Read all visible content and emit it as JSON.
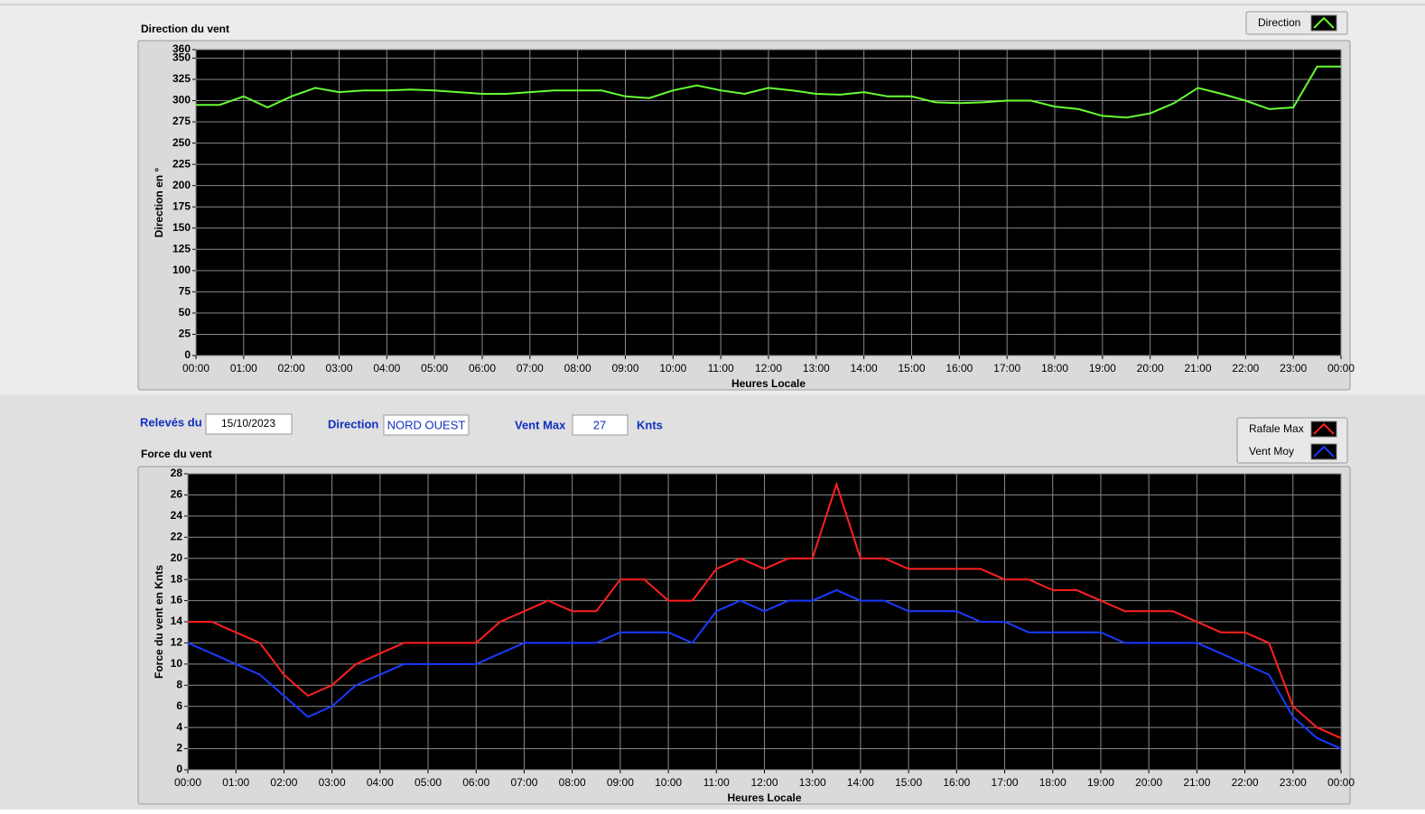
{
  "chart_data": [
    {
      "type": "line",
      "title": "Direction du vent",
      "x_label": "Heures Locale",
      "y_label": "Direction en °",
      "x": [
        0,
        0.5,
        1,
        1.5,
        2,
        2.5,
        3,
        3.5,
        4,
        4.5,
        5,
        5.5,
        6,
        6.5,
        7,
        7.5,
        8,
        8.5,
        9,
        9.5,
        10,
        10.5,
        11,
        11.5,
        12,
        12.5,
        13,
        13.5,
        14,
        14.5,
        15,
        15.5,
        16,
        16.5,
        17,
        17.5,
        18,
        18.5,
        19,
        19.5,
        20,
        20.5,
        21,
        21.5,
        22,
        22.5,
        23,
        23.5,
        24
      ],
      "xlim": [
        0,
        24
      ],
      "xticks": [
        {
          "value": 0,
          "label": "00:00"
        },
        {
          "value": 1,
          "label": "01:00"
        },
        {
          "value": 2,
          "label": "02:00"
        },
        {
          "value": 3,
          "label": "03:00"
        },
        {
          "value": 4,
          "label": "04:00"
        },
        {
          "value": 5,
          "label": "05:00"
        },
        {
          "value": 6,
          "label": "06:00"
        },
        {
          "value": 7,
          "label": "07:00"
        },
        {
          "value": 8,
          "label": "08:00"
        },
        {
          "value": 9,
          "label": "09:00"
        },
        {
          "value": 10,
          "label": "10:00"
        },
        {
          "value": 11,
          "label": "11:00"
        },
        {
          "value": 12,
          "label": "12:00"
        },
        {
          "value": 13,
          "label": "13:00"
        },
        {
          "value": 14,
          "label": "14:00"
        },
        {
          "value": 15,
          "label": "15:00"
        },
        {
          "value": 16,
          "label": "16:00"
        },
        {
          "value": 17,
          "label": "17:00"
        },
        {
          "value": 18,
          "label": "18:00"
        },
        {
          "value": 19,
          "label": "19:00"
        },
        {
          "value": 20,
          "label": "20:00"
        },
        {
          "value": 21,
          "label": "21:00"
        },
        {
          "value": 22,
          "label": "22:00"
        },
        {
          "value": 23,
          "label": "23:00"
        },
        {
          "value": 24,
          "label": "00:00"
        }
      ],
      "ylim": [
        0,
        360
      ],
      "yticks": [
        0,
        25,
        50,
        75,
        100,
        125,
        150,
        175,
        200,
        225,
        250,
        275,
        300,
        325,
        350,
        360
      ],
      "grid": true,
      "legend": "top-right",
      "series": [
        {
          "name": "Direction",
          "color": "#66ff33",
          "values": [
            295,
            295,
            305,
            292,
            305,
            315,
            310,
            312,
            312,
            313,
            312,
            310,
            308,
            308,
            310,
            312,
            312,
            312,
            305,
            303,
            312,
            318,
            312,
            308,
            315,
            312,
            308,
            307,
            310,
            305,
            305,
            298,
            297,
            298,
            300,
            300,
            293,
            290,
            282,
            280,
            285,
            297,
            315,
            308,
            300,
            290,
            292,
            340,
            340
          ]
        }
      ]
    },
    {
      "type": "line",
      "title": "Force du vent",
      "x_label": "Heures Locale",
      "y_label": "Force du vent en Knts",
      "x": [
        0,
        0.5,
        1,
        1.5,
        2,
        2.5,
        3,
        3.5,
        4,
        4.5,
        5,
        5.5,
        6,
        6.5,
        7,
        7.5,
        8,
        8.5,
        9,
        9.5,
        10,
        10.5,
        11,
        11.5,
        12,
        12.5,
        13,
        13.5,
        14,
        14.5,
        15,
        15.5,
        16,
        16.5,
        17,
        17.5,
        18,
        18.5,
        19,
        19.5,
        20,
        20.5,
        21,
        21.5,
        22,
        22.5,
        23,
        23.5,
        24
      ],
      "xlim": [
        0,
        24
      ],
      "xticks": [
        {
          "value": 0,
          "label": "00:00"
        },
        {
          "value": 1,
          "label": "01:00"
        },
        {
          "value": 2,
          "label": "02:00"
        },
        {
          "value": 3,
          "label": "03:00"
        },
        {
          "value": 4,
          "label": "04:00"
        },
        {
          "value": 5,
          "label": "05:00"
        },
        {
          "value": 6,
          "label": "06:00"
        },
        {
          "value": 7,
          "label": "07:00"
        },
        {
          "value": 8,
          "label": "08:00"
        },
        {
          "value": 9,
          "label": "09:00"
        },
        {
          "value": 10,
          "label": "10:00"
        },
        {
          "value": 11,
          "label": "11:00"
        },
        {
          "value": 12,
          "label": "12:00"
        },
        {
          "value": 13,
          "label": "13:00"
        },
        {
          "value": 14,
          "label": "14:00"
        },
        {
          "value": 15,
          "label": "15:00"
        },
        {
          "value": 16,
          "label": "16:00"
        },
        {
          "value": 17,
          "label": "17:00"
        },
        {
          "value": 18,
          "label": "18:00"
        },
        {
          "value": 19,
          "label": "19:00"
        },
        {
          "value": 20,
          "label": "20:00"
        },
        {
          "value": 21,
          "label": "21:00"
        },
        {
          "value": 22,
          "label": "22:00"
        },
        {
          "value": 23,
          "label": "23:00"
        },
        {
          "value": 24,
          "label": "00:00"
        }
      ],
      "ylim": [
        0,
        28
      ],
      "yticks": [
        0,
        2,
        4,
        6,
        8,
        10,
        12,
        14,
        16,
        18,
        20,
        22,
        24,
        26,
        28
      ],
      "grid": true,
      "legend": "top-right",
      "series": [
        {
          "name": "Rafale Max",
          "color": "#ff2020",
          "values": [
            14,
            14,
            13,
            12,
            9,
            7,
            8,
            10,
            11,
            12,
            12,
            12,
            12,
            14,
            15,
            16,
            15,
            15,
            18,
            18,
            16,
            16,
            19,
            20,
            19,
            20,
            20,
            27,
            20,
            20,
            19,
            19,
            19,
            19,
            18,
            18,
            17,
            17,
            16,
            15,
            15,
            15,
            14,
            13,
            13,
            12,
            6,
            4,
            3
          ]
        },
        {
          "name": "Vent Moy",
          "color": "#1a3aff",
          "values": [
            12,
            11,
            10,
            9,
            7,
            5,
            6,
            8,
            9,
            10,
            10,
            10,
            10,
            11,
            12,
            12,
            12,
            12,
            13,
            13,
            13,
            12,
            15,
            16,
            15,
            16,
            16,
            17,
            16,
            16,
            15,
            15,
            15,
            14,
            14,
            13,
            13,
            13,
            13,
            12,
            12,
            12,
            12,
            11,
            10,
            9,
            5,
            3,
            2
          ]
        }
      ]
    }
  ],
  "controls": {
    "date_label": "Relevés du",
    "date": "15/10/2023",
    "direction_label": "Direction",
    "direction": "NORD OUEST",
    "max_label": "Vent Max",
    "max": 27,
    "unit": "Knts"
  }
}
